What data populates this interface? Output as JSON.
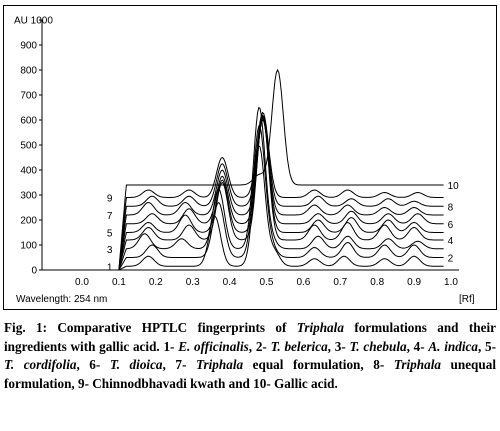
{
  "chart_data": {
    "type": "line",
    "title": "",
    "xlabel": "[Rf]",
    "ylabel": "AU",
    "xlim": [
      -0.1,
      1.1
    ],
    "ylim": [
      0,
      1000
    ],
    "x_ticks": [
      "0.0",
      "0.1",
      "0.2",
      "0.3",
      "0.4",
      "0.5",
      "0.6",
      "0.7",
      "0.8",
      "0.9",
      "1.0"
    ],
    "y_ticks": [
      "0",
      "100",
      "200",
      "300",
      "400",
      "500",
      "600",
      "700",
      "800",
      "900",
      "1000"
    ],
    "annotation": "Wavelength: 254 nm",
    "series": [
      {
        "label": "1",
        "peaks": [
          [
            0.18,
            40
          ],
          [
            0.36,
            200
          ],
          [
            0.48,
            480
          ],
          [
            0.52,
            60
          ],
          [
            0.63,
            30
          ],
          [
            0.71,
            40
          ],
          [
            0.82,
            30
          ],
          [
            0.9,
            40
          ]
        ],
        "base": 15
      },
      {
        "label": "2",
        "peaks": [
          [
            0.19,
            50
          ],
          [
            0.37,
            220
          ],
          [
            0.48,
            520
          ],
          [
            0.51,
            50
          ],
          [
            0.63,
            40
          ],
          [
            0.72,
            60
          ],
          [
            0.82,
            50
          ],
          [
            0.9,
            50
          ]
        ],
        "base": 50
      },
      {
        "label": "3",
        "peaks": [
          [
            0.17,
            60
          ],
          [
            0.27,
            40
          ],
          [
            0.37,
            240
          ],
          [
            0.48,
            560
          ],
          [
            0.51,
            40
          ],
          [
            0.64,
            50
          ],
          [
            0.72,
            50
          ],
          [
            0.83,
            40
          ],
          [
            0.91,
            30
          ]
        ],
        "base": 85
      },
      {
        "label": "4",
        "peaks": [
          [
            0.18,
            50
          ],
          [
            0.29,
            60
          ],
          [
            0.38,
            230
          ],
          [
            0.49,
            500
          ],
          [
            0.63,
            60
          ],
          [
            0.72,
            70
          ],
          [
            0.82,
            60
          ],
          [
            0.9,
            50
          ]
        ],
        "base": 120
      },
      {
        "label": "5",
        "peaks": [
          [
            0.18,
            40
          ],
          [
            0.28,
            70
          ],
          [
            0.38,
            210
          ],
          [
            0.49,
            460
          ],
          [
            0.64,
            50
          ],
          [
            0.73,
            60
          ],
          [
            0.83,
            50
          ],
          [
            0.9,
            40
          ]
        ],
        "base": 150
      },
      {
        "label": "6",
        "peaks": [
          [
            0.19,
            40
          ],
          [
            0.29,
            60
          ],
          [
            0.38,
            190
          ],
          [
            0.49,
            420
          ],
          [
            0.64,
            40
          ],
          [
            0.73,
            50
          ],
          [
            0.83,
            40
          ],
          [
            0.91,
            40
          ]
        ],
        "base": 185
      },
      {
        "label": "7",
        "peaks": [
          [
            0.18,
            50
          ],
          [
            0.28,
            50
          ],
          [
            0.38,
            180
          ],
          [
            0.49,
            380
          ],
          [
            0.63,
            40
          ],
          [
            0.72,
            40
          ],
          [
            0.82,
            30
          ],
          [
            0.9,
            30
          ]
        ],
        "base": 220
      },
      {
        "label": "8",
        "peaks": [
          [
            0.19,
            40
          ],
          [
            0.29,
            40
          ],
          [
            0.38,
            170
          ],
          [
            0.49,
            360
          ],
          [
            0.64,
            40
          ],
          [
            0.73,
            30
          ],
          [
            0.83,
            30
          ],
          [
            0.9,
            20
          ]
        ],
        "base": 255
      },
      {
        "label": "9",
        "peaks": [
          [
            0.18,
            30
          ],
          [
            0.29,
            30
          ],
          [
            0.38,
            160
          ],
          [
            0.49,
            340
          ],
          [
            0.63,
            30
          ],
          [
            0.72,
            30
          ],
          [
            0.82,
            20
          ],
          [
            0.91,
            20
          ]
        ],
        "base": 290
      },
      {
        "label": "10",
        "peaks": [
          [
            0.53,
            460
          ],
          [
            0.48,
            40
          ]
        ],
        "base": 340
      }
    ]
  },
  "caption": {
    "fig_label": "Fig. 1:",
    "parts": [
      {
        "t": " Comparative HPTLC fingerprints of ",
        "i": false
      },
      {
        "t": "Triphala",
        "i": true
      },
      {
        "t": " formulations and their ingredients with gallic acid. 1- ",
        "i": false
      },
      {
        "t": "E. officinalis",
        "i": true
      },
      {
        "t": ", 2- ",
        "i": false
      },
      {
        "t": "T. belerica",
        "i": true
      },
      {
        "t": ", 3- ",
        "i": false
      },
      {
        "t": "T. chebula",
        "i": true
      },
      {
        "t": ", 4- ",
        "i": false
      },
      {
        "t": "A. indica",
        "i": true
      },
      {
        "t": ", 5- ",
        "i": false
      },
      {
        "t": "T. cordifolia",
        "i": true
      },
      {
        "t": ", 6- ",
        "i": false
      },
      {
        "t": "T. dioica",
        "i": true
      },
      {
        "t": ", 7- ",
        "i": false
      },
      {
        "t": "Triphala",
        "i": true
      },
      {
        "t": " equal formulation, 8- ",
        "i": false
      },
      {
        "t": "Triphala",
        "i": true
      },
      {
        "t": " unequal formulation, 9- Chinnodbhavadi kwath and 10- Gallic acid.",
        "i": false
      }
    ]
  }
}
